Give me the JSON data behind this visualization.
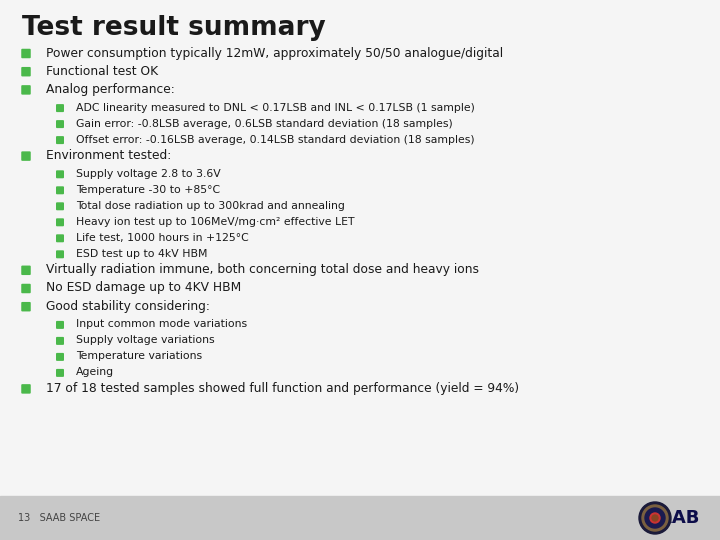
{
  "title": "Test result summary",
  "bg_color": "#f5f5f5",
  "footer_bg": "#c8c8c8",
  "title_color": "#1a1a1a",
  "text_color": "#1a1a1a",
  "bullet_color": "#4ab84a",
  "footer_text": "13   SAAB SPACE",
  "footer_text_color": "#444444",
  "saab_text_color": "#0d0d4a",
  "items": [
    {
      "level": 1,
      "text": "Power consumption typically 12mW, approximately 50/50 analogue/digital"
    },
    {
      "level": 1,
      "text": "Functional test OK"
    },
    {
      "level": 1,
      "text": "Analog performance:"
    },
    {
      "level": 2,
      "text": "ADC linearity measured to DNL < 0.17LSB and INL < 0.17LSB (1 sample)"
    },
    {
      "level": 2,
      "text": "Gain error: -0.8LSB average, 0.6LSB standard deviation (18 samples)"
    },
    {
      "level": 2,
      "text": "Offset error: -0.16LSB average, 0.14LSB standard deviation (18 samples)"
    },
    {
      "level": 1,
      "text": "Environment tested:"
    },
    {
      "level": 2,
      "text": "Supply voltage 2.8 to 3.6V"
    },
    {
      "level": 2,
      "text": "Temperature -30 to +85°C"
    },
    {
      "level": 2,
      "text": "Total dose radiation up to 300krad and annealing"
    },
    {
      "level": 2,
      "text": "Heavy ion test up to 106MeV/mg·cm² effective LET"
    },
    {
      "level": 2,
      "text": "Life test, 1000 hours in +125°C"
    },
    {
      "level": 2,
      "text": "ESD test up to 4kV HBM"
    },
    {
      "level": 1,
      "text": "Virtually radiation immune, both concerning total dose and heavy ions"
    },
    {
      "level": 1,
      "text": "No ESD damage up to 4KV HBM"
    },
    {
      "level": 1,
      "text": "Good stability considering:"
    },
    {
      "level": 2,
      "text": "Input common mode variations"
    },
    {
      "level": 2,
      "text": "Supply voltage variations"
    },
    {
      "level": 2,
      "text": "Temperature variations"
    },
    {
      "level": 2,
      "text": "Ageing"
    },
    {
      "level": 1,
      "text": "17 of 18 tested samples showed full function and performance (yield = 94%)"
    }
  ]
}
